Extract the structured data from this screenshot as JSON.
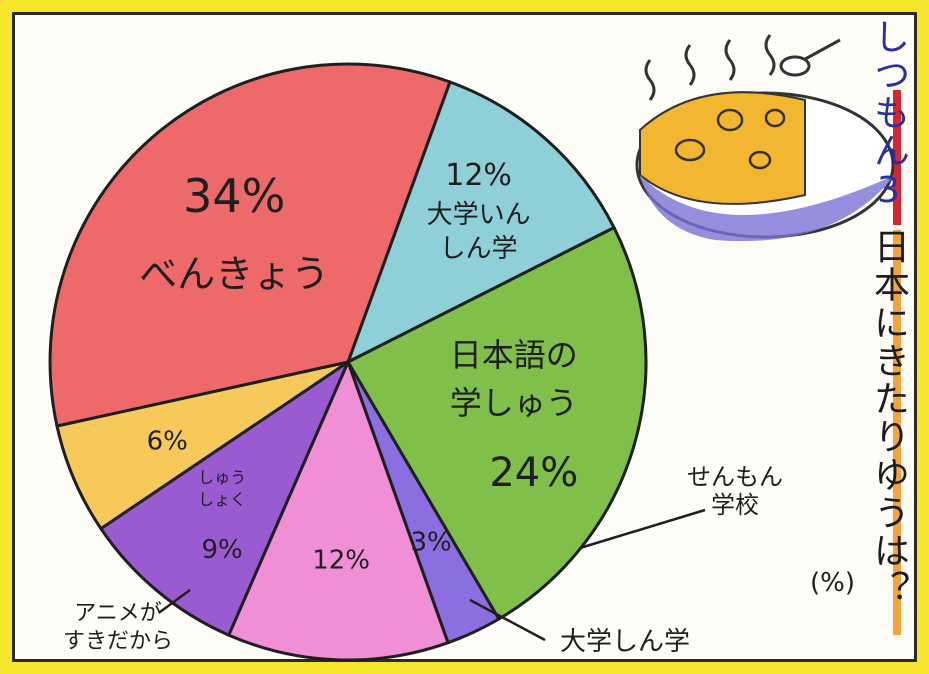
{
  "question": {
    "label": "しつもん3",
    "text": "日本にきたりゆうは？",
    "unit": "(%)"
  },
  "chart_data": {
    "type": "pie",
    "title": "しつもん3 日本にきたりゆうは？",
    "unit": "%",
    "slices": [
      {
        "id": "grad-research",
        "label_lines": [
          "大学いん",
          "しん学"
        ],
        "value": 12,
        "value_text": "12%",
        "color": "#8fd0d8"
      },
      {
        "id": "japanese",
        "label_lines": [
          "日本語の",
          "学しゅう"
        ],
        "value": 24,
        "value_text": "24%",
        "color": "#7fbf4a"
      },
      {
        "id": "vocational",
        "label_lines": [
          "せんもん",
          "学校"
        ],
        "value": 3,
        "value_text": "3%",
        "color": "#8b6fe0"
      },
      {
        "id": "university",
        "label_lines": [
          "大学しん学"
        ],
        "value": 12,
        "value_text": "12%",
        "color": "#f08fd6"
      },
      {
        "id": "job",
        "label_lines": [
          "しゅう",
          "しょく"
        ],
        "value": 9,
        "value_text": "9%",
        "color": "#9a5ad0"
      },
      {
        "id": "anime",
        "label_lines": [
          "アニメが",
          "すきだから"
        ],
        "value": 6,
        "value_text": "6%",
        "color": "#f7c95a"
      },
      {
        "id": "study",
        "label_lines": [
          "べんきょう"
        ],
        "value": 34,
        "value_text": "34%",
        "color": "#ee6a6a"
      }
    ],
    "legend": "none"
  }
}
